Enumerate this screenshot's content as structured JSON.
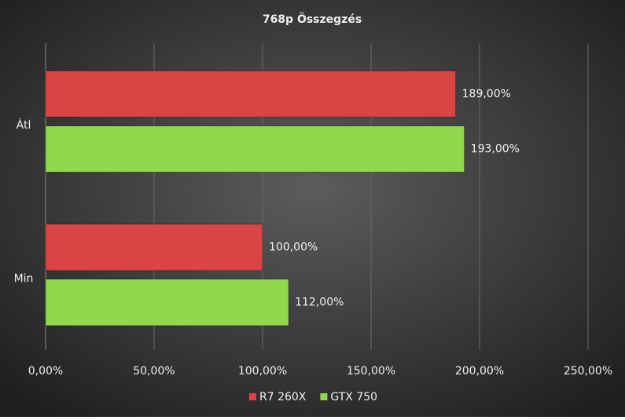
{
  "chart_data": {
    "type": "barh",
    "title": "768p  Összegzés",
    "categories": [
      "Átl",
      "Min"
    ],
    "series": [
      {
        "name": "R7 260X",
        "color": "#d94444",
        "values": [
          189,
          100
        ],
        "value_labels": [
          "189,00%",
          "100,00%"
        ]
      },
      {
        "name": "GTX 750",
        "color": "#92d84e",
        "values": [
          193,
          112
        ],
        "value_labels": [
          "193,00%",
          "112,00%"
        ]
      }
    ],
    "xlim": [
      0,
      250
    ],
    "xticks": [
      {
        "value": 0,
        "label": "0,00%"
      },
      {
        "value": 50,
        "label": "50,00%"
      },
      {
        "value": 100,
        "label": "100,00%"
      },
      {
        "value": 150,
        "label": "150,00%"
      },
      {
        "value": 200,
        "label": "200,00%"
      },
      {
        "value": 250,
        "label": "250,00%"
      }
    ],
    "grid": true,
    "legend": "bottom"
  }
}
